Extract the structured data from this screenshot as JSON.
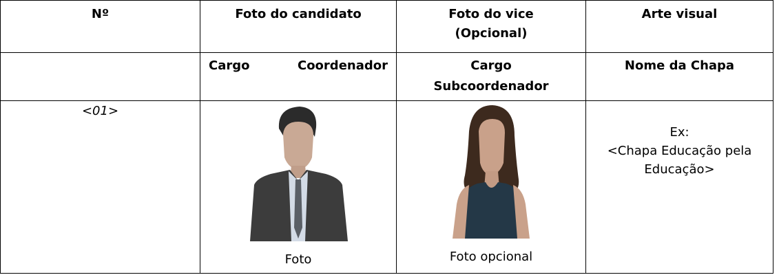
{
  "table": {
    "header": [
      "Nº",
      "Foto do candidato",
      "Foto  do vice (Opcional)",
      "Arte visual"
    ],
    "subheader": [
      "Cargo Coordenador",
      "Cargo Subcoordenador",
      "Nome da Chapa"
    ],
    "row": {
      "number": "<01>",
      "photo_label": "Foto",
      "vice_photo_label": "Foto opcional",
      "example_label": "Ex:",
      "example_text": "<Chapa Educação pela Educação>"
    }
  }
}
